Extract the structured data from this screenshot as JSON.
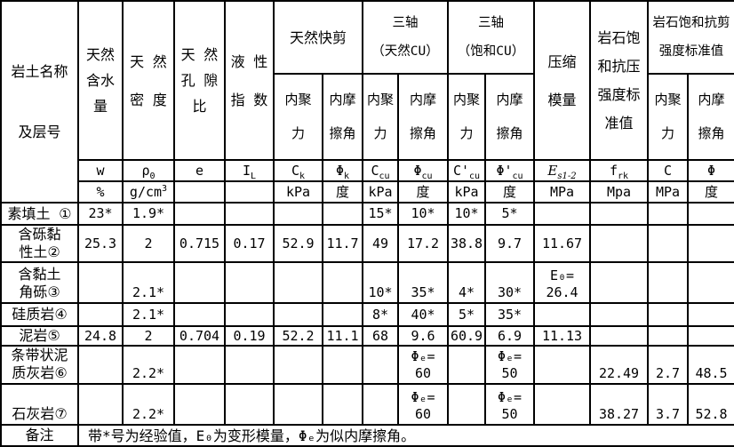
{
  "header": {
    "name_col": [
      "岩土名称",
      "及层号"
    ],
    "water": [
      "天然",
      "含水",
      "量"
    ],
    "density": [
      "天 然",
      "密 度"
    ],
    "void_ratio": [
      "天 然",
      "孔 隙",
      "比"
    ],
    "liquidity": [
      "液 性",
      "指 数"
    ],
    "quick_shear": "天然快剪",
    "triaxial_natural": [
      "三轴",
      "（天然CU）"
    ],
    "triaxial_saturated": [
      "三轴",
      "（饱和CU）"
    ],
    "compression": [
      "压缩",
      "模量"
    ],
    "rock_compressive": [
      "岩石饱",
      "和抗压",
      "强度标",
      "准值"
    ],
    "rock_shear": [
      "岩石饱和抗剪",
      "强度标准值"
    ],
    "cohesion": [
      "内聚",
      "力"
    ],
    "friction": [
      "内摩",
      "擦角"
    ],
    "symbols": {
      "w": {
        "m": "w"
      },
      "rho": {
        "m": "ρ",
        "s": "0"
      },
      "e": {
        "m": "e"
      },
      "il": {
        "m": "I",
        "s": "L"
      },
      "ck": {
        "m": "C",
        "s": "k"
      },
      "phik": {
        "m": "Φ",
        "s": "k"
      },
      "ccu": {
        "m": "C",
        "s": "cu"
      },
      "phicu": {
        "m": "Φ",
        "s": "cu"
      },
      "c1cu": {
        "m": "C'",
        "s": "cu"
      },
      "phi1cu": {
        "m": "Φ'",
        "s": "cu"
      },
      "es": {
        "m": "E",
        "s": "s1-2"
      },
      "frk": {
        "m": "f",
        "s": "rk"
      },
      "c": {
        "m": "C"
      },
      "phi": {
        "m": "Φ"
      }
    },
    "units": {
      "w": "%",
      "rho": {
        "m": "g/cm",
        "sup": "3"
      },
      "e": "",
      "il": "",
      "ck": "kPa",
      "phik": "度",
      "ccu": "kPa",
      "phicu": "度",
      "c1cu": "kPa",
      "phi1cu": "度",
      "es": "MPa",
      "frk": "Mpa",
      "c": "MPa",
      "phi": "度"
    }
  },
  "rows": [
    {
      "label": [
        "素填土 ①"
      ],
      "values": {
        "w": "23*",
        "rho": "1.9*",
        "ccu": "15*",
        "phicu": "10*",
        "c1cu": "10*",
        "phi1cu": "5*"
      }
    },
    {
      "label": [
        "含砾黏",
        "性土②"
      ],
      "values": {
        "w": "25.3",
        "rho": "2",
        "e": "0.715",
        "il": "0.17",
        "ck": "52.9",
        "phik": "11.7",
        "ccu": "49",
        "phicu": "17.2",
        "c1cu": "38.8",
        "phi1cu": "9.7",
        "es": "11.67"
      }
    },
    {
      "label": [
        "含黏土",
        "角砾③"
      ],
      "values": {
        "rho": "2.1*",
        "ccu": "10*",
        "phicu": "35*",
        "c1cu": "4*",
        "phi1cu": "30*",
        "es": "E₀=\n26.4"
      }
    },
    {
      "label": [
        "硅质岩④"
      ],
      "values": {
        "rho": "2.1*",
        "ccu": "8*",
        "phicu": "40*",
        "c1cu": "5*",
        "phi1cu": "35*"
      }
    },
    {
      "label": [
        "泥岩⑤"
      ],
      "values": {
        "w": "24.8",
        "rho": "2",
        "e": "0.704",
        "il": "0.19",
        "ck": "52.2",
        "phik": "11.1",
        "ccu": "68",
        "phicu": "9.6",
        "c1cu": "60.9",
        "phi1cu": "6.9",
        "es": "11.13"
      }
    },
    {
      "label": [
        "条带状泥",
        "质灰岩⑥"
      ],
      "values": {
        "rho": "2.2*",
        "phicu": "Φₑ=\n60",
        "phi1cu": "Φₑ=\n50",
        "frk": "22.49",
        "c": "2.7",
        "phi": "48.5"
      }
    },
    {
      "label": [
        "石灰岩⑦"
      ],
      "values": {
        "rho": "2.2*",
        "phicu": "Φₑ=\n60",
        "phi1cu": "Φₑ=\n50",
        "frk": "38.27",
        "c": "3.7",
        "phi": "52.8"
      }
    }
  ],
  "remark": {
    "label": "备注",
    "text": "带*号为经验值，E₀为变形模量，Φₑ为似内摩擦角。"
  }
}
